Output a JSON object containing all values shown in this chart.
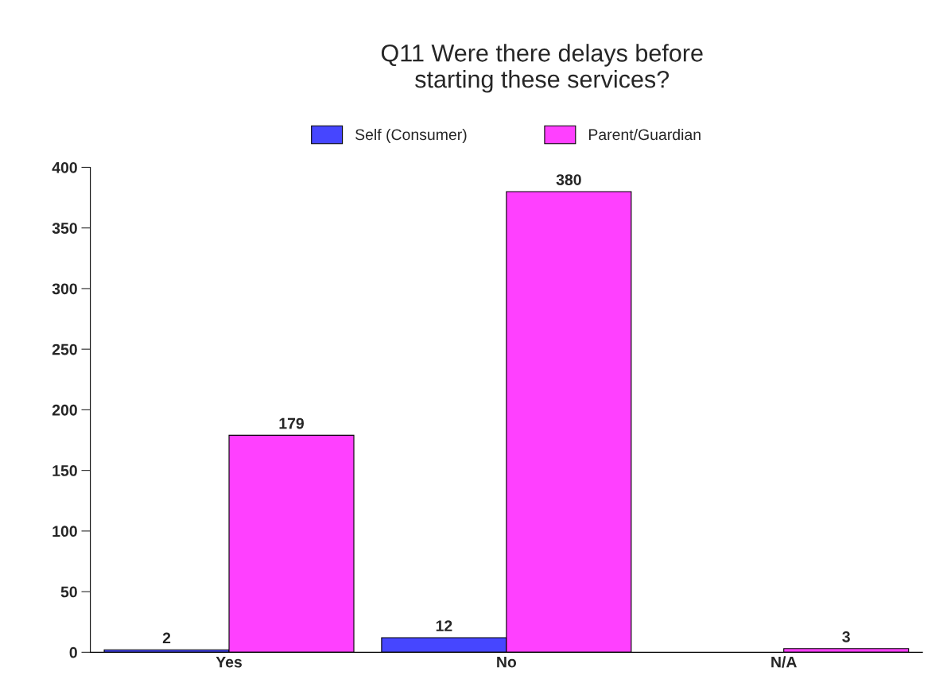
{
  "chart_data": {
    "type": "bar",
    "title": "Q11 Were there delays before\nstarting these services?",
    "categories": [
      "Yes",
      "No",
      "N/A"
    ],
    "series": [
      {
        "name": "Self (Consumer)",
        "color": "#4646ff",
        "values": [
          2,
          12,
          null
        ]
      },
      {
        "name": "Parent/Guardian",
        "color": "#ff40ff",
        "values": [
          179,
          380,
          3
        ]
      }
    ],
    "ylim": [
      0,
      400
    ],
    "yticks": [
      0,
      50,
      100,
      150,
      200,
      250,
      300,
      350,
      400
    ],
    "data_labels": true,
    "legend": "top",
    "grid": false
  }
}
